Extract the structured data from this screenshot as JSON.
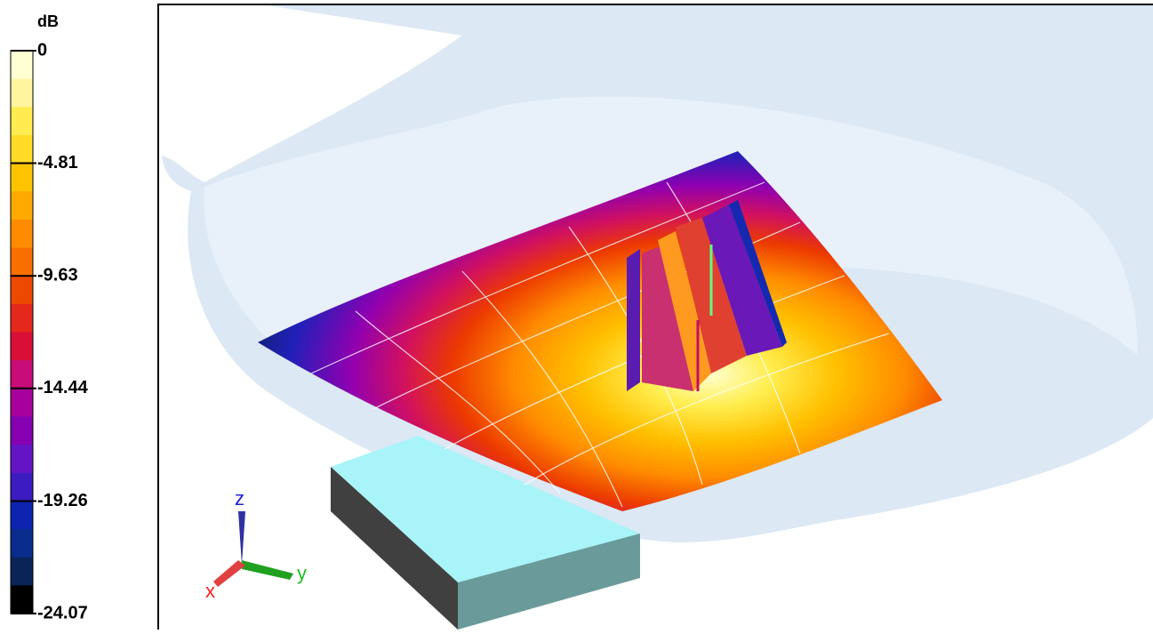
{
  "colorbar": {
    "unit": "dB",
    "ticks": [
      0,
      -4.81,
      -9.63,
      -14.44,
      -19.26,
      -24.07
    ],
    "colors": [
      "#ffffd2",
      "#fff5a0",
      "#ffec50",
      "#ffdc28",
      "#ffc400",
      "#ffaa00",
      "#ff8c00",
      "#f87000",
      "#ec4a00",
      "#e4281c",
      "#d81038",
      "#c80c78",
      "#a8009c",
      "#8400b0",
      "#6414c4",
      "#3c1cc0",
      "#0c24b0",
      "#0a2c8c",
      "#0a2458",
      "#000000"
    ]
  },
  "axes_triad": {
    "z": "z",
    "y": "y",
    "x": "x"
  }
}
